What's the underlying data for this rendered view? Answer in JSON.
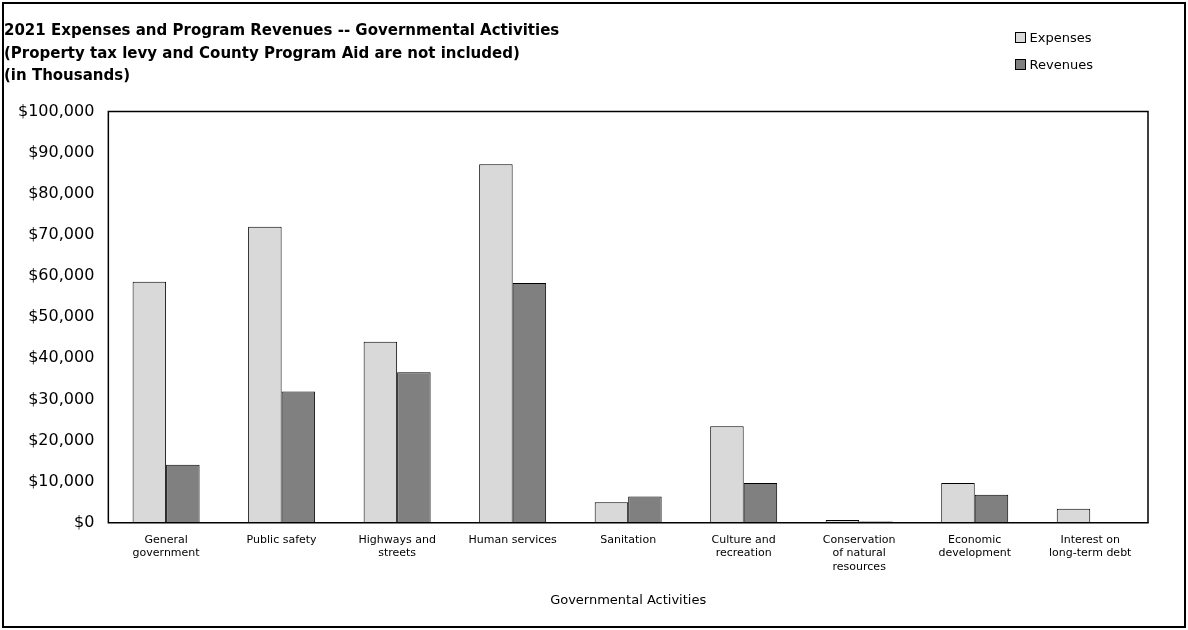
{
  "chart_data": {
    "type": "bar",
    "title": "2021 Expenses and Program Revenues -- Governmental Activities\n(Property tax levy and County Program Aid are not included)\n(in Thousands)",
    "xlabel": "Governmental Activities",
    "categories": [
      "General government",
      "Public safety",
      "Highways and streets",
      "Human services",
      "Sanitation",
      "Culture and recreation",
      "Conservation of natural resources",
      "Economic development",
      "Interest on long-term debt"
    ],
    "series": [
      {
        "name": "Expenses",
        "color": "#d9d9d9",
        "values": [
          58600,
          72000,
          44000,
          87200,
          5000,
          23500,
          700,
          9700,
          3400
        ]
      },
      {
        "name": "Revenues",
        "color": "#808080",
        "values": [
          14100,
          31900,
          36600,
          58300,
          6400,
          9700,
          300,
          6800,
          0
        ]
      }
    ],
    "ylim": [
      0,
      100000
    ],
    "yticks": [
      {
        "value": 0,
        "label": "$0"
      },
      {
        "value": 10000,
        "label": "$10,000"
      },
      {
        "value": 20000,
        "label": "$20,000"
      },
      {
        "value": 30000,
        "label": "$30,000"
      },
      {
        "value": 40000,
        "label": "$40,000"
      },
      {
        "value": 50000,
        "label": "$50,000"
      },
      {
        "value": 60000,
        "label": "$60,000"
      },
      {
        "value": 70000,
        "label": "$70,000"
      },
      {
        "value": 80000,
        "label": "$80,000"
      },
      {
        "value": 90000,
        "label": "$90,000"
      },
      {
        "value": 100000,
        "label": "$100,000"
      }
    ],
    "grid": false,
    "legend": "top right"
  }
}
